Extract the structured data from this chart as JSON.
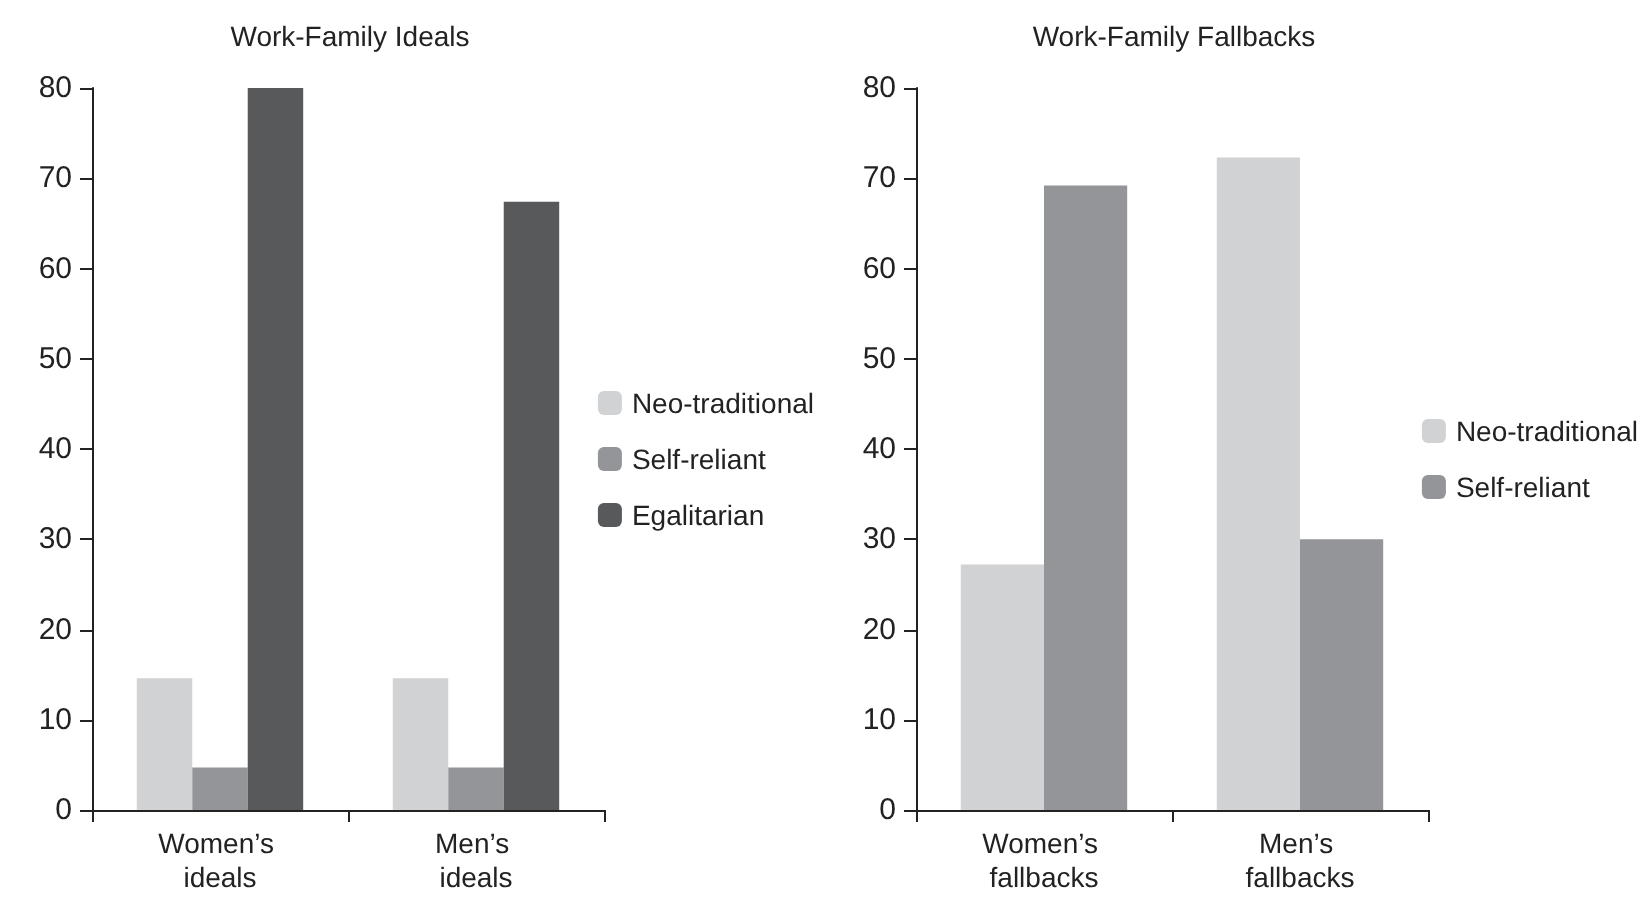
{
  "chart_data": [
    {
      "type": "bar",
      "title": "Work-Family Ideals",
      "categories": [
        "Women’s ideals",
        "Men’s ideals"
      ],
      "series": [
        {
          "name": "Neo-traditional",
          "color": "#d1d2d4",
          "values": [
            14.6,
            14.6
          ]
        },
        {
          "name": "Self-reliant",
          "color": "#949598",
          "values": [
            4.7,
            4.7
          ]
        },
        {
          "name": "Egalitarian",
          "color": "#58595b",
          "values": [
            80,
            67.4
          ]
        }
      ],
      "ylim": [
        0,
        80
      ],
      "yticks": [
        0,
        10,
        20,
        30,
        40,
        50,
        60,
        70,
        80
      ],
      "grid": false,
      "legend": "right"
    },
    {
      "type": "bar",
      "title": "Work-Family Fallbacks",
      "categories": [
        "Women’s fallbacks",
        "Men’s fallbacks"
      ],
      "series": [
        {
          "name": "Neo-traditional",
          "color": "#d1d2d4",
          "values": [
            27.2,
            72.3
          ]
        },
        {
          "name": "Self-reliant",
          "color": "#949598",
          "values": [
            69.2,
            30
          ]
        }
      ],
      "ylim": [
        0,
        80
      ],
      "yticks": [
        0,
        10,
        20,
        30,
        40,
        50,
        60,
        70,
        80
      ],
      "grid": false,
      "legend": "right"
    }
  ]
}
